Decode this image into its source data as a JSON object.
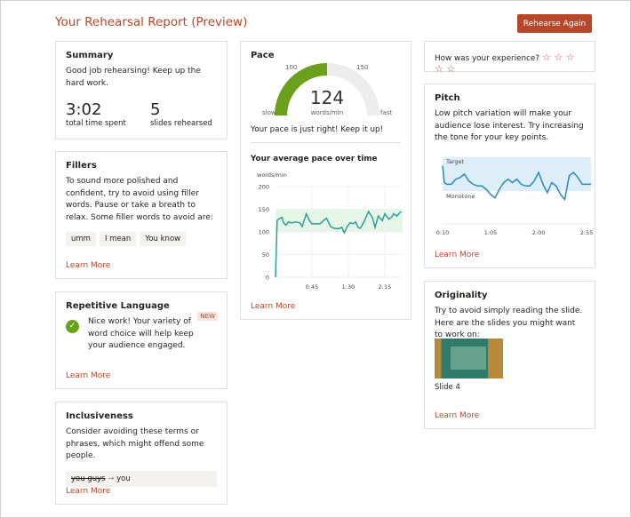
{
  "header": {
    "title": "Your Rehearsal Report (Preview)",
    "rehearse_again": "Rehearse Again"
  },
  "summary": {
    "title": "Summary",
    "text": "Good job rehearsing! Keep up the hard work.",
    "time": "3:02",
    "time_label": "total time spent",
    "slides": "5",
    "slides_label": "slides rehearsed"
  },
  "fillers": {
    "title": "Fillers",
    "text": "To sound more polished and confident, try to avoid using filler words. Pause or take a breath to relax. Some filler words to avoid are:",
    "words": [
      "umm",
      "I mean",
      "You know"
    ],
    "learn_more": "Learn More"
  },
  "repetitive": {
    "title": "Repetitive Language",
    "badge": "NEW",
    "text": "Nice work! Your variety of word choice will help keep your audience engaged.",
    "learn_more": "Learn More"
  },
  "inclusiveness": {
    "title": "Inclusiveness",
    "text": "Consider avoiding these terms or phrases, which might offend some people.",
    "term": "you guys",
    "suggestion": "you",
    "learn_more": "Learn More"
  },
  "pace": {
    "title": "Pace",
    "gauge_min_label": "100",
    "gauge_max_label": "150",
    "slow": "slow",
    "fast": "fast",
    "value": "124",
    "unit": "words/min",
    "message": "Your pace is just right! Keep it up!",
    "chart_title": "Your average pace over time",
    "learn_more": "Learn More"
  },
  "experience": {
    "question": "How was your experience?",
    "stars": 5,
    "rating": 0
  },
  "pitch": {
    "title": "Pitch",
    "text": "Low pitch variation will make your audience lose interest. Try increasing the tone for your key points.",
    "target_label": "Target",
    "monotone_label": "Monotone",
    "learn_more": "Learn More"
  },
  "originality": {
    "title": "Originality",
    "text": "Try to avoid simply reading the slide. Here are the slides you might want to work on:",
    "slide_label": "Slide 4",
    "learn_more": "Learn More"
  },
  "colors": {
    "accent": "#b7472a",
    "gauge": "#6ba01d",
    "line": "#2e9e9a",
    "pitch_line": "#2b88b8",
    "pitch_band": "#deeef9",
    "pace_band": "#e6f6e6"
  },
  "chart_data": [
    {
      "type": "line",
      "title": "Your average pace over time",
      "ylabel": "words/min",
      "ylim": [
        0,
        200
      ],
      "yticks": [
        "0",
        "50",
        "100",
        "150",
        "200"
      ],
      "xticks": [
        "0:45",
        "1:30",
        "2:15"
      ],
      "target_band": [
        100,
        150
      ],
      "x": [
        0,
        2,
        5,
        8,
        10,
        13,
        16,
        20,
        25,
        30,
        33,
        38,
        42,
        45,
        50,
        55,
        60,
        63,
        68,
        72,
        78,
        82,
        85,
        88,
        92,
        96,
        99,
        102,
        105,
        110,
        115,
        120,
        123,
        127,
        132,
        135,
        140,
        143,
        146,
        150,
        155
      ],
      "values": [
        0,
        125,
        130,
        132,
        120,
        115,
        122,
        120,
        122,
        120,
        112,
        140,
        125,
        118,
        118,
        118,
        126,
        130,
        112,
        108,
        107,
        110,
        98,
        110,
        120,
        118,
        122,
        110,
        108,
        125,
        145,
        130,
        110,
        135,
        125,
        140,
        128,
        132,
        140,
        135,
        145
      ]
    },
    {
      "type": "line",
      "title": "Pitch",
      "xticks": [
        "0:10",
        "1:05",
        "2:00",
        "2:55"
      ],
      "band_labels": [
        "Target",
        "Monotone"
      ],
      "x": [
        10,
        12,
        15,
        20,
        25,
        30,
        35,
        40,
        45,
        50,
        55,
        60,
        65,
        70,
        75,
        80,
        85,
        90,
        95,
        100,
        105,
        110,
        115,
        120,
        125,
        130,
        135,
        140,
        145,
        150,
        155,
        160,
        165,
        170,
        175,
        180
      ],
      "values": [
        0.75,
        0.25,
        0.2,
        0.2,
        0.35,
        0.4,
        0.5,
        0.3,
        0.2,
        0.15,
        0.15,
        0.05,
        -0.1,
        -0.2,
        0.05,
        0.25,
        0.35,
        0.25,
        0.35,
        0.2,
        0.15,
        0.15,
        0.3,
        0.55,
        0.2,
        -0.05,
        0.25,
        0.15,
        -0.1,
        -0.25,
        0.45,
        0.55,
        0.4,
        0.2,
        0.2,
        0.2
      ]
    }
  ]
}
